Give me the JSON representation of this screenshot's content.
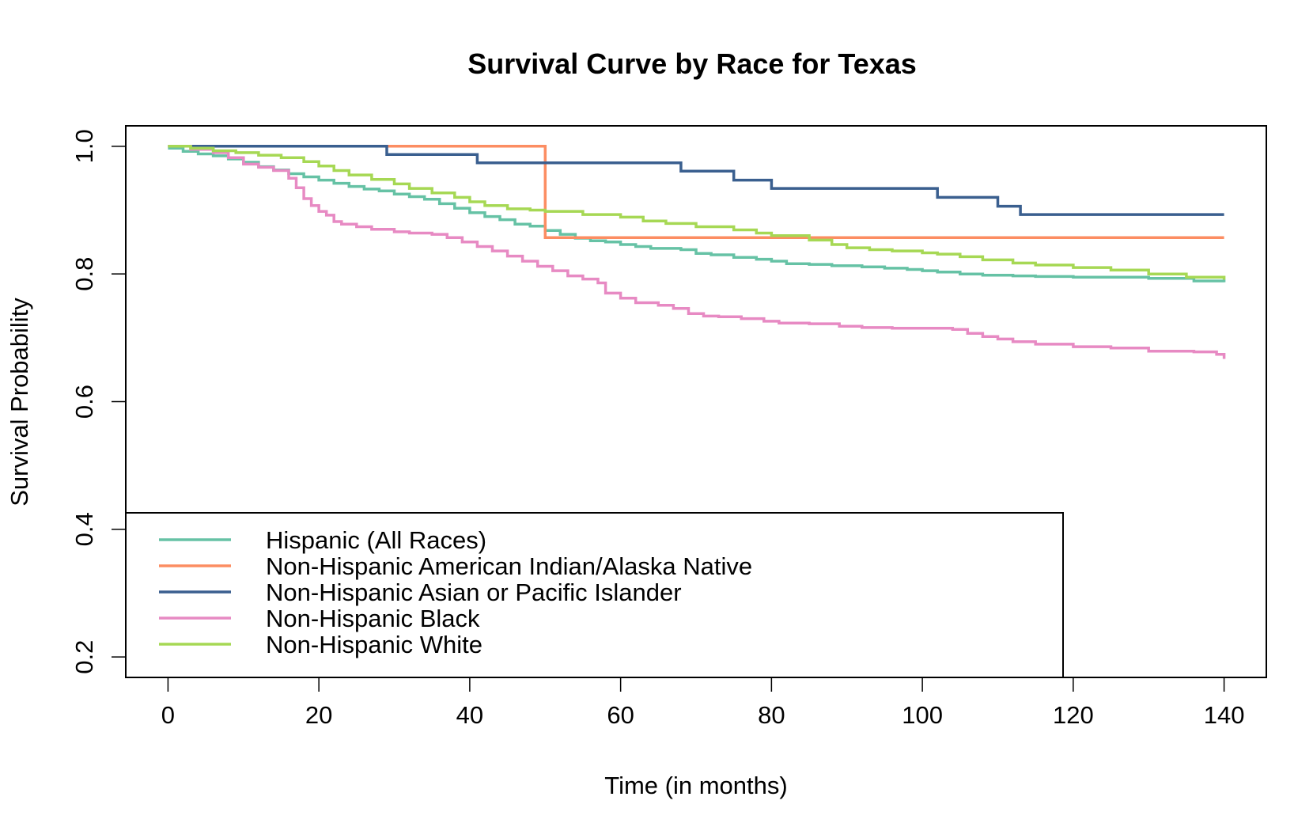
{
  "chart_data": {
    "type": "line",
    "step": true,
    "title": "Survival Curve by Race for Texas",
    "xlabel": "Time (in months)",
    "ylabel": "Survival Probability",
    "xlim": [
      -5.6,
      145.6
    ],
    "ylim": [
      0.168,
      1.032
    ],
    "x_ticks": [
      0,
      20,
      40,
      60,
      80,
      100,
      120,
      140
    ],
    "y_ticks": [
      0.2,
      0.4,
      0.6,
      0.8,
      1.0
    ],
    "x_tick_labels": [
      "0",
      "20",
      "40",
      "60",
      "80",
      "100",
      "120",
      "140"
    ],
    "y_tick_labels": [
      "0.2",
      "0.4",
      "0.6",
      "0.8",
      "1.0"
    ],
    "grid": false,
    "legend_position": "bottom-left",
    "series": [
      {
        "name": "Hispanic (All Races)",
        "color": "#66c2a5",
        "x": [
          0,
          2,
          4,
          6,
          8,
          10,
          12,
          14,
          16,
          18,
          20,
          22,
          24,
          26,
          28,
          30,
          32,
          34,
          36,
          38,
          40,
          42,
          44,
          46,
          48,
          50,
          52,
          54,
          56,
          58,
          60,
          62,
          64,
          66,
          68,
          70,
          72,
          75,
          78,
          80,
          82,
          85,
          88,
          90,
          92,
          95,
          98,
          100,
          102,
          105,
          108,
          112,
          115,
          118,
          120,
          125,
          130,
          136,
          140
        ],
        "y": [
          0.997,
          0.992,
          0.988,
          0.985,
          0.98,
          0.975,
          0.968,
          0.963,
          0.957,
          0.952,
          0.947,
          0.942,
          0.937,
          0.933,
          0.93,
          0.925,
          0.921,
          0.917,
          0.91,
          0.903,
          0.896,
          0.89,
          0.885,
          0.878,
          0.875,
          0.868,
          0.862,
          0.856,
          0.852,
          0.85,
          0.846,
          0.843,
          0.84,
          0.84,
          0.838,
          0.832,
          0.83,
          0.826,
          0.823,
          0.82,
          0.816,
          0.815,
          0.813,
          0.813,
          0.811,
          0.809,
          0.807,
          0.805,
          0.803,
          0.8,
          0.798,
          0.797,
          0.796,
          0.796,
          0.795,
          0.795,
          0.793,
          0.789,
          0.787
        ]
      },
      {
        "name": "Non-Hispanic American Indian/Alaska Native",
        "color": "#fc8d62",
        "x": [
          0,
          50,
          140
        ],
        "y": [
          1.0,
          0.857,
          0.857
        ]
      },
      {
        "name": "Non-Hispanic Asian or Pacific Islander",
        "color": "#3a5f8f",
        "x": [
          0,
          29,
          41,
          68,
          75,
          80,
          102,
          110,
          113,
          140
        ],
        "y": [
          1.0,
          0.987,
          0.974,
          0.961,
          0.947,
          0.934,
          0.92,
          0.906,
          0.893,
          0.893
        ]
      },
      {
        "name": "Non-Hispanic Black",
        "color": "#e78ac3",
        "x": [
          0,
          3,
          6,
          8,
          10,
          12,
          14,
          16,
          17,
          18,
          19,
          20,
          21,
          22,
          23,
          25,
          27,
          30,
          32,
          35,
          37,
          39,
          41,
          43,
          45,
          47,
          49,
          51,
          53,
          55,
          57,
          58,
          60,
          62,
          65,
          67,
          69,
          71,
          73,
          76,
          79,
          81,
          85,
          89,
          92,
          96,
          100,
          104,
          106,
          108,
          110,
          112,
          115,
          120,
          125,
          130,
          136,
          139,
          140
        ],
        "y": [
          1.0,
          0.995,
          0.99,
          0.982,
          0.972,
          0.967,
          0.962,
          0.95,
          0.935,
          0.918,
          0.907,
          0.898,
          0.892,
          0.882,
          0.878,
          0.874,
          0.87,
          0.866,
          0.864,
          0.862,
          0.857,
          0.85,
          0.843,
          0.836,
          0.828,
          0.82,
          0.812,
          0.805,
          0.797,
          0.792,
          0.786,
          0.77,
          0.762,
          0.755,
          0.751,
          0.746,
          0.738,
          0.734,
          0.733,
          0.73,
          0.726,
          0.723,
          0.722,
          0.718,
          0.716,
          0.715,
          0.715,
          0.713,
          0.707,
          0.702,
          0.698,
          0.694,
          0.69,
          0.686,
          0.684,
          0.679,
          0.678,
          0.674,
          0.667
        ]
      },
      {
        "name": "Non-Hispanic White",
        "color": "#a6d854",
        "x": [
          0,
          3,
          6,
          9,
          12,
          15,
          18,
          20,
          22,
          24,
          27,
          30,
          32,
          35,
          38,
          40,
          42,
          45,
          48,
          50,
          55,
          60,
          63,
          66,
          70,
          75,
          78,
          80,
          85,
          88,
          90,
          93,
          96,
          100,
          102,
          105,
          108,
          112,
          115,
          120,
          125,
          130,
          135,
          140
        ],
        "y": [
          1.0,
          0.997,
          0.993,
          0.99,
          0.986,
          0.982,
          0.976,
          0.969,
          0.962,
          0.955,
          0.948,
          0.941,
          0.934,
          0.927,
          0.92,
          0.913,
          0.907,
          0.902,
          0.9,
          0.898,
          0.893,
          0.889,
          0.883,
          0.879,
          0.874,
          0.869,
          0.864,
          0.86,
          0.853,
          0.846,
          0.841,
          0.838,
          0.836,
          0.833,
          0.831,
          0.827,
          0.822,
          0.817,
          0.814,
          0.81,
          0.806,
          0.8,
          0.795,
          0.791
        ]
      }
    ]
  }
}
